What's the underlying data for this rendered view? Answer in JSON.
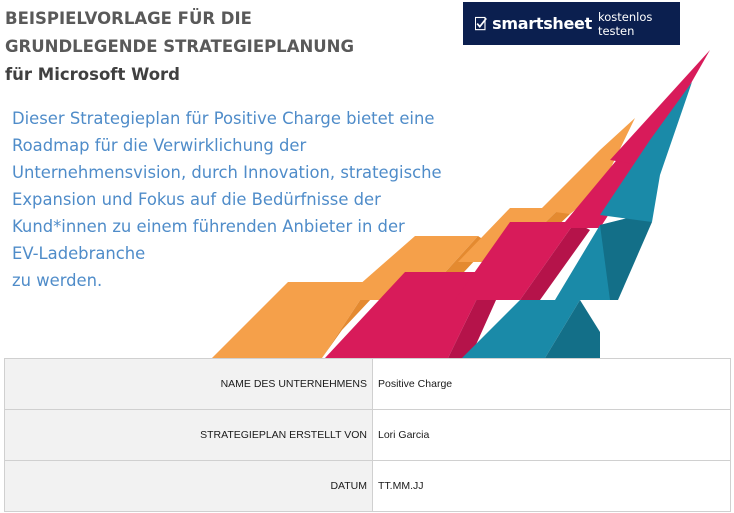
{
  "title": {
    "line1": "BEISPIELVORLAGE FÜR DIE",
    "line2": "GRUNDLEGENDE STRATEGIEPLANUNG",
    "line3": "für Microsoft Word"
  },
  "banner": {
    "brand": "smartsheet",
    "action": "kostenlos testen",
    "icon": "smartsheet-checkmark-logo",
    "background": "#0b1f4f"
  },
  "intro_lines": [
    "Dieser Strategieplan für Positive Charge bietet eine",
    "Roadmap für die Verwirklichung der",
    "Unternehmensvision, durch Innovation, strategische",
    "Expansion und Fokus auf die Bedürfnisse der",
    "Kund*innen zu einem führenden Anbieter in der",
    "EV-Ladebranche",
    "zu werden."
  ],
  "art": {
    "colors": {
      "orange": "#f5a04a",
      "magenta": "#d81b5a",
      "teal": "#1a8aa8"
    }
  },
  "info_table": [
    {
      "label": "NAME DES UNTERNEHMENS",
      "value": "Positive Charge"
    },
    {
      "label": "STRATEGIEPLAN ERSTELLT VON",
      "value": "Lori Garcia"
    },
    {
      "label": "DATUM",
      "value": "TT.MM.JJ"
    }
  ],
  "colors": {
    "intro_text": "#4f8cc9",
    "title_text": "#595959",
    "label_bg": "#f2f2f2"
  }
}
